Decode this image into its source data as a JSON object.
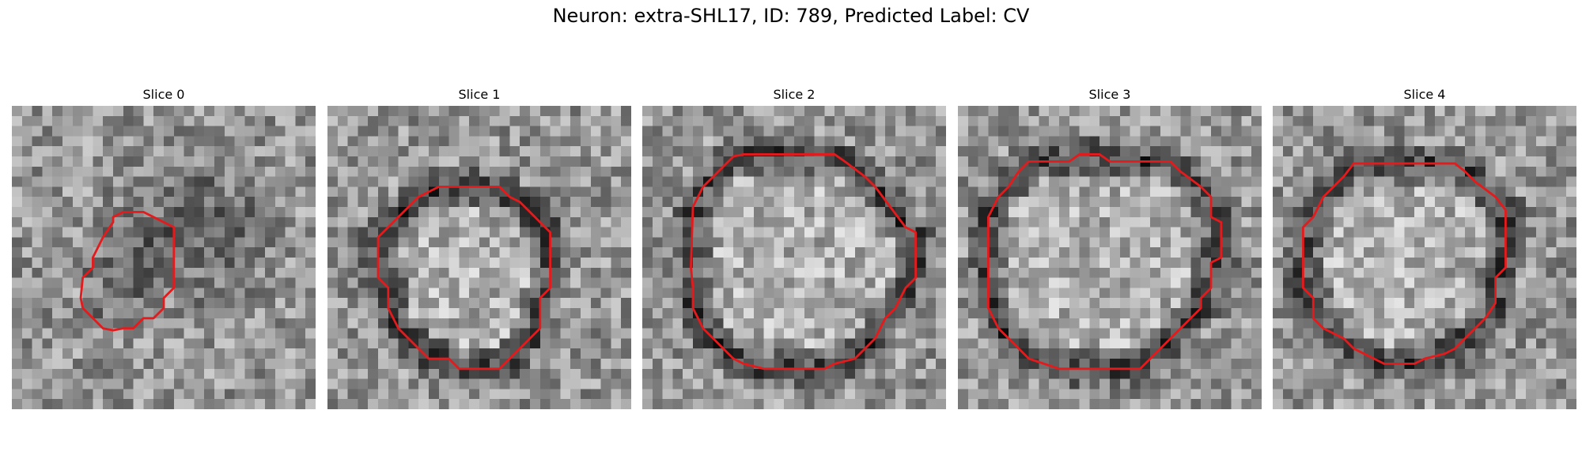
{
  "figure": {
    "title": "Neuron: extra-SHL17, ID: 789, Predicted Label: CV",
    "contour_color": "#e41a1c",
    "colormap": "gray"
  },
  "slices": [
    {
      "label": "Slice 0"
    },
    {
      "label": "Slice 1"
    },
    {
      "label": "Slice 2"
    },
    {
      "label": "Slice 3"
    },
    {
      "label": "Slice 4"
    }
  ]
}
